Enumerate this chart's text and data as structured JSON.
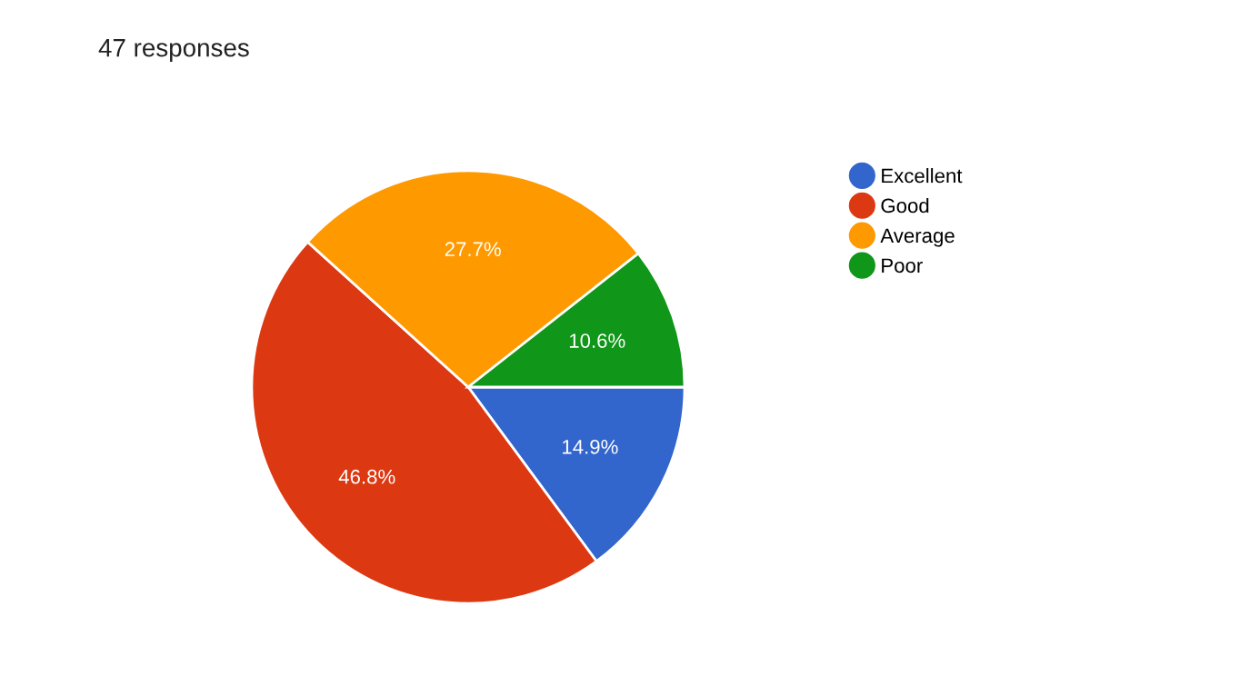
{
  "chart_data": {
    "type": "pie",
    "title": "47 responses",
    "categories": [
      "Excellent",
      "Good",
      "Average",
      "Poor"
    ],
    "values": [
      14.9,
      46.8,
      27.7,
      10.6
    ],
    "colors": [
      "#3366cc",
      "#dc3912",
      "#ff9900",
      "#109618"
    ],
    "value_labels": [
      "14.9%",
      "46.8%",
      "27.7%",
      "10.6%"
    ],
    "legend": "right"
  }
}
